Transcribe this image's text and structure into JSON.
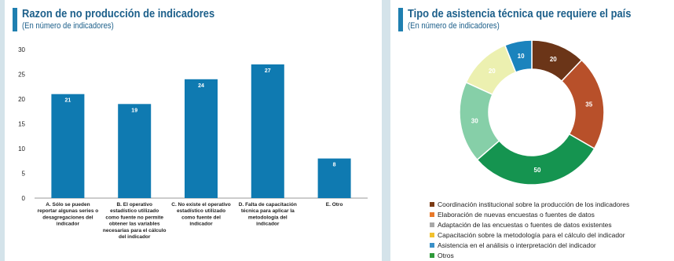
{
  "left_chart": {
    "title": "Razon de no producción de indicadores",
    "subtitle": "(En número de indicadores)"
  },
  "right_chart": {
    "title": "Tipo de asistencia técnica que requiere el país",
    "subtitle": "(En número de indicadores)"
  },
  "colors": {
    "bar": "#0f7ab1",
    "title_bar": "#1f7fb0",
    "title_text": "#1c5f8a"
  },
  "chart_data": [
    {
      "type": "bar",
      "title": "Razon de no producción de indicadores",
      "subtitle": "(En número de indicadores)",
      "categories": [
        "A. Sólo se pueden reportar algunas series o desagregaciones del indicador",
        "B. El operativo estadístico utilizado como fuente no permite obtener las variables necesarias para el cálculo del indicador",
        "C. No existe el operativo estadístico utilizado como fuente del indicador",
        "D. Falta de capacitación técnica para aplicar la metodología del indicador",
        "E. Otro"
      ],
      "category_lines": [
        [
          "A. Sólo se pueden",
          "reportar algunas series o",
          "desagregaciones del",
          "indicador"
        ],
        [
          "B. El operativo",
          "estadístico utilizado",
          "como fuente no permite",
          "obtener las variables",
          "necesarias para el cálculo",
          "del indicador"
        ],
        [
          "C. No existe el operativo",
          "estadístico utilizado",
          "como fuente del",
          "indicador"
        ],
        [
          "D. Falta de capacitación",
          "técnica para aplicar la",
          "metodología del",
          "indicador"
        ],
        [
          "E. Otro"
        ]
      ],
      "values": [
        21,
        19,
        24,
        27,
        8
      ],
      "ylim": [
        0,
        30
      ],
      "yticks": [
        0,
        5,
        10,
        15,
        20,
        25,
        30
      ],
      "grid": false,
      "legend": "none"
    },
    {
      "type": "pie",
      "title": "Tipo de asistencia técnica que requiere el país",
      "subtitle": "(En número de indicadores)",
      "donut": true,
      "legend": "bottom",
      "labels": [
        "Coordinación institucional sobre la producción de los indicadores",
        "Elaboración de nuevas encuestas o fuentes de datos",
        "Adaptación de las encuestas o fuentes de datos existentes",
        "Capacitación sobre la metodología para el cálculo del indicador",
        "Asistencia en el análisis o interpretación del indicador",
        "Otros"
      ],
      "legend_colors": [
        "#7a3a14",
        "#e8792a",
        "#a8a8a8",
        "#f2c12e",
        "#3a90c8",
        "#2e9a3a"
      ],
      "slices": [
        {
          "value": 20,
          "color": "#6b3518"
        },
        {
          "value": 35,
          "color": "#b8502a"
        },
        {
          "value": 50,
          "color": "#159450"
        },
        {
          "value": 30,
          "color": "#86cfa8"
        },
        {
          "value": 20,
          "color": "#ecf0b0"
        },
        {
          "value": 10,
          "color": "#1b83bd"
        }
      ]
    }
  ]
}
